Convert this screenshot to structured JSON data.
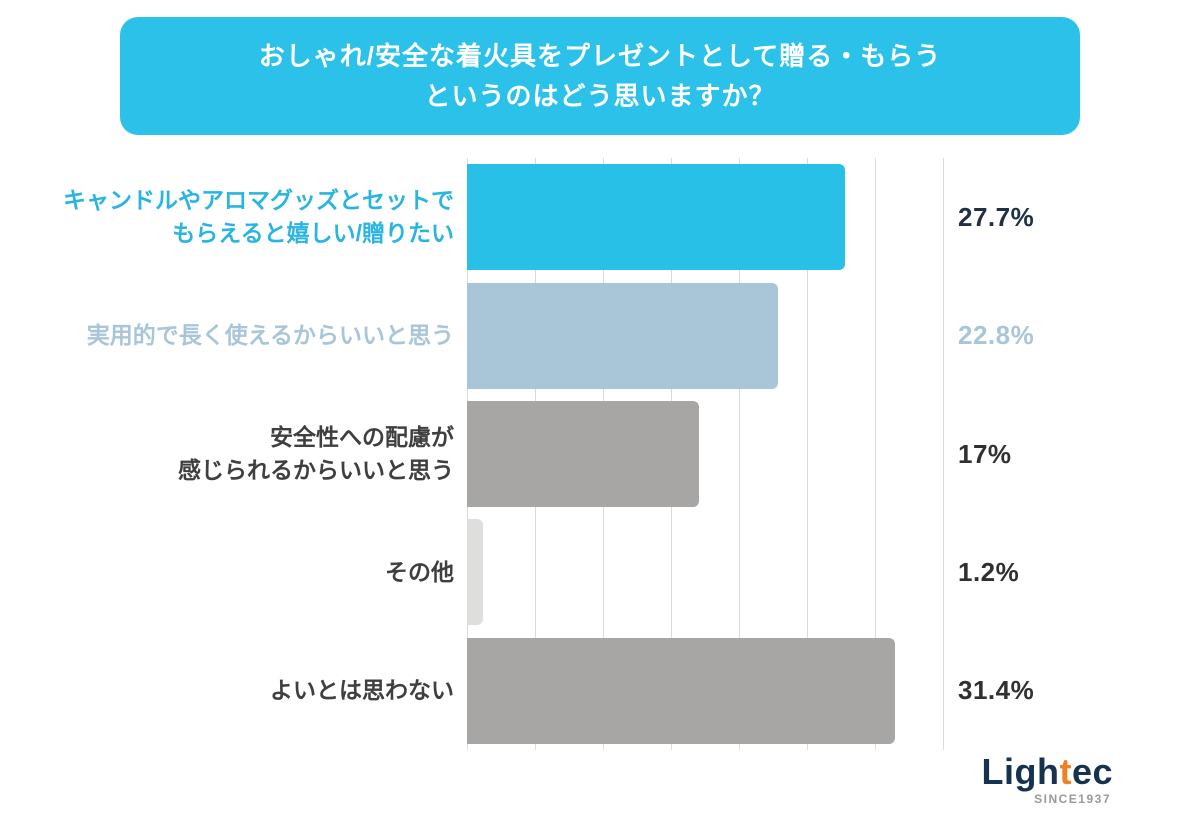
{
  "page": {
    "title_banner": "おしゃれ/安全な着火具をプレゼントとして贈る・もらう\nというのはどう思いますか？"
  },
  "theme": {
    "background": "#ffffff",
    "banner_bg": "#2bc1e9",
    "banner_text": "#ffffff",
    "grid_line": "#dadada"
  },
  "chart_data": {
    "type": "bar",
    "orientation": "horizontal",
    "title": "おしゃれ/安全な着火具をプレゼントとして贈る・もらうというのはどう思いますか？",
    "categories": [
      "キャンドルやアロマグッズとセットで\nもらえると嬉しい/贈りたい",
      "実用的で長く使えるからいいと思う",
      "安全性への配慮が\n感じられるからいいと思う",
      "その他",
      "よいとは思わない"
    ],
    "values": [
      27.7,
      22.8,
      17,
      1.2,
      31.4
    ],
    "value_labels": [
      "27.7%",
      "22.8%",
      "17%",
      "1.2%",
      "31.4%"
    ],
    "xlim": [
      0,
      35
    ],
    "axis_max": 35,
    "grid": true,
    "grid_interval": 5,
    "legend": "none",
    "bar_colors": [
      "#29c0e8",
      "#a9c6d9",
      "#a8a5a5",
      "#dededd",
      "#a8a5a5"
    ],
    "label_colors": [
      "#29b5e0",
      "#a9c6d9",
      "#3f3f3f",
      "#3f3f3f",
      "#3f3f3f"
    ],
    "value_colors": [
      "#1f3044",
      "#a9c6d9",
      "#303030",
      "#303030",
      "#303030"
    ]
  },
  "logo": {
    "part1": "Ligh",
    "part2": "t",
    "part3": "ec",
    "subtext": "SINCE1937",
    "color_main": "#16324f",
    "color_accent": "#ef8122"
  }
}
